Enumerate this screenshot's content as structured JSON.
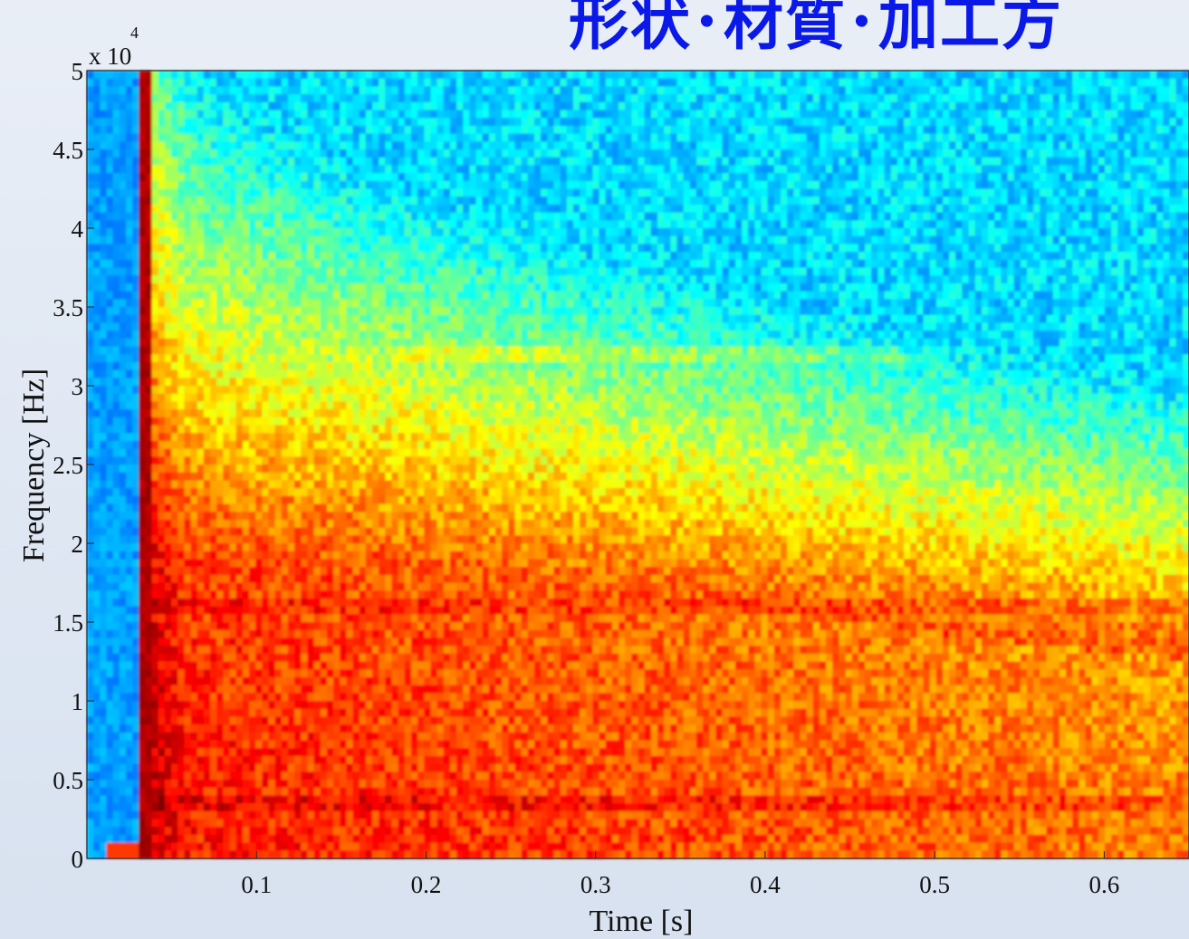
{
  "slide": {
    "title": "形状･材質･加工方",
    "title_color": "#0a19e8"
  },
  "chart_data": {
    "type": "heatmap",
    "title": "",
    "xlabel": "Time [s]",
    "ylabel": "Frequency [Hz]",
    "y_multiplier_base": "x 10",
    "y_multiplier_exponent": "4",
    "xlim": [
      0,
      0.65
    ],
    "ylim": [
      0,
      50000
    ],
    "x_ticks": [
      0.1,
      0.2,
      0.3,
      0.4,
      0.5,
      0.6
    ],
    "x_tick_labels": [
      "0.1",
      "0.2",
      "0.3",
      "0.4",
      "0.5",
      "0.6"
    ],
    "y_ticks": [
      0,
      5000,
      10000,
      15000,
      20000,
      25000,
      30000,
      35000,
      40000,
      45000,
      50000
    ],
    "y_tick_labels": [
      "0",
      "0.5",
      "1",
      "1.5",
      "2",
      "2.5",
      "3",
      "3.5",
      "4",
      "4.5",
      "5"
    ],
    "colormap": "jet",
    "colormap_stops": [
      "#00008f",
      "#0000ff",
      "#00ffff",
      "#ffff00",
      "#ff0000",
      "#800000"
    ],
    "onset_time": 0.03,
    "intensity_description": "broadband burst at onset, energy concentrated below ~2e4 Hz and decaying over time"
  }
}
